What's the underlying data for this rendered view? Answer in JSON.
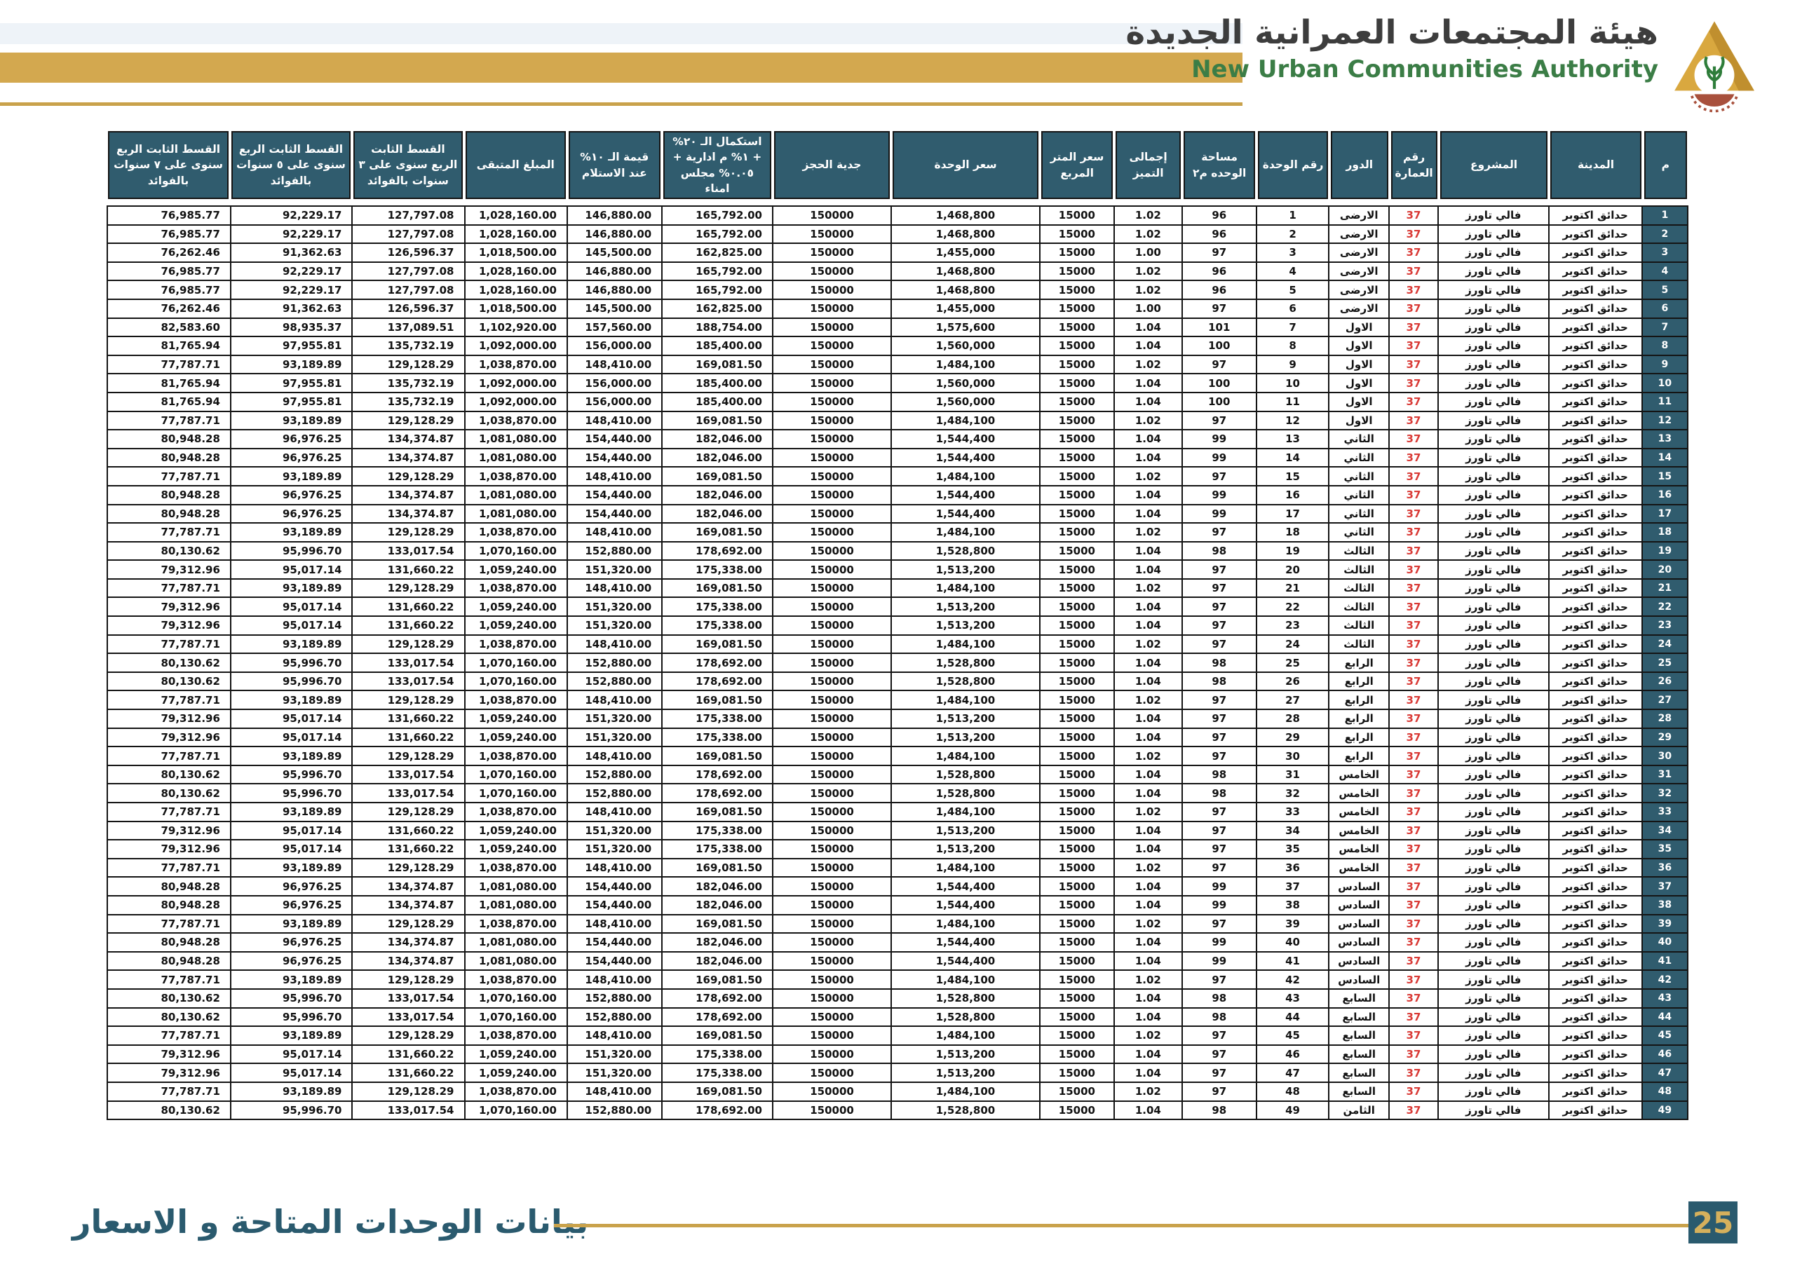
{
  "brand": {
    "title_ar": "هيئة المجتمعات العمرانية الجديدة",
    "title_en": "New Urban Communities Authority"
  },
  "footer": {
    "caption": "بيانات الوحدات المتاحة و الاسعار",
    "page_number": "25"
  },
  "colors": {
    "accent_gold": "#d3a84f",
    "header_teal": "#305c6e",
    "building_red": "#d93a36",
    "brand_green": "#3b7d46"
  },
  "table": {
    "columns": [
      {
        "key": "n",
        "label": "م"
      },
      {
        "key": "city",
        "label": "المدينة"
      },
      {
        "key": "project",
        "label": "المشروع"
      },
      {
        "key": "bldg",
        "label": "رقم العمارة"
      },
      {
        "key": "floor",
        "label": "الدور"
      },
      {
        "key": "unit",
        "label": "رقم الوحدة"
      },
      {
        "key": "area",
        "label": "مساحة الوحده م٢"
      },
      {
        "key": "premium",
        "label": "إجمالى التميز"
      },
      {
        "key": "sqm",
        "label": "سعر المتر المربع"
      },
      {
        "key": "price",
        "label": "سعر الوحدة"
      },
      {
        "key": "deposit",
        "label": "جدية الحجز"
      },
      {
        "key": "completion",
        "label": "استكمال الـ ٢٠% + ١% م ادارية + ٠.٠٥% مجلس امناء"
      },
      {
        "key": "receipt10",
        "label": "قيمة الـ ١٠% عند الاستلام"
      },
      {
        "key": "remaining",
        "label": "المبلغ المتبقى"
      },
      {
        "key": "inst3",
        "label": "القسط الثابت الربع سنوى على ٣ سنوات بالفوائد"
      },
      {
        "key": "inst5",
        "label": "القسط الثابت الربع سنوى على ٥ سنوات بالفوائد"
      },
      {
        "key": "inst7",
        "label": "القسط الثابت الربع سنوى على ٧ سنوات بالفوائد"
      }
    ],
    "common": {
      "city": "حدائق اكتوبر",
      "project": "فالي تاورز",
      "bldg": "37",
      "sqm": "15000",
      "deposit": "150000"
    },
    "patterns": {
      "A": {
        "area": "96",
        "premium": "1.02",
        "price": "1,468,800",
        "completion": "165,792.00",
        "receipt10": "146,880.00",
        "remaining": "1,028,160.00",
        "inst3": "127,797.08",
        "inst5": "92,229.17",
        "inst7": "76,985.77"
      },
      "B": {
        "area": "97",
        "premium": "1.00",
        "price": "1,455,000",
        "completion": "162,825.00",
        "receipt10": "145,500.00",
        "remaining": "1,018,500.00",
        "inst3": "126,596.37",
        "inst5": "91,362.63",
        "inst7": "76,262.46"
      },
      "C": {
        "area": "101",
        "premium": "1.04",
        "price": "1,575,600",
        "completion": "188,754.00",
        "receipt10": "157,560.00",
        "remaining": "1,102,920.00",
        "inst3": "137,089.51",
        "inst5": "98,935.37",
        "inst7": "82,583.60"
      },
      "D": {
        "area": "100",
        "premium": "1.04",
        "price": "1,560,000",
        "completion": "185,400.00",
        "receipt10": "156,000.00",
        "remaining": "1,092,000.00",
        "inst3": "135,732.19",
        "inst5": "97,955.81",
        "inst7": "81,765.94"
      },
      "E": {
        "area": "97",
        "premium": "1.02",
        "price": "1,484,100",
        "completion": "169,081.50",
        "receipt10": "148,410.00",
        "remaining": "1,038,870.00",
        "inst3": "129,128.29",
        "inst5": "93,189.89",
        "inst7": "77,787.71"
      },
      "F": {
        "area": "99",
        "premium": "1.04",
        "price": "1,544,400",
        "completion": "182,046.00",
        "receipt10": "154,440.00",
        "remaining": "1,081,080.00",
        "inst3": "134,374.87",
        "inst5": "96,976.25",
        "inst7": "80,948.28"
      },
      "G": {
        "area": "98",
        "premium": "1.04",
        "price": "1,528,800",
        "completion": "178,692.00",
        "receipt10": "152,880.00",
        "remaining": "1,070,160.00",
        "inst3": "133,017.54",
        "inst5": "95,996.70",
        "inst7": "80,130.62"
      },
      "H": {
        "area": "97",
        "premium": "1.04",
        "price": "1,513,200",
        "completion": "175,338.00",
        "receipt10": "151,320.00",
        "remaining": "1,059,240.00",
        "inst3": "131,660.22",
        "inst5": "95,017.14",
        "inst7": "79,312.96"
      }
    },
    "rows": [
      {
        "n": "1",
        "unit": "1",
        "floor": "الارضى",
        "pattern": "A"
      },
      {
        "n": "2",
        "unit": "2",
        "floor": "الارضى",
        "pattern": "A"
      },
      {
        "n": "3",
        "unit": "3",
        "floor": "الارضى",
        "pattern": "B"
      },
      {
        "n": "4",
        "unit": "4",
        "floor": "الارضى",
        "pattern": "A"
      },
      {
        "n": "5",
        "unit": "5",
        "floor": "الارضى",
        "pattern": "A"
      },
      {
        "n": "6",
        "unit": "6",
        "floor": "الارضى",
        "pattern": "B"
      },
      {
        "n": "7",
        "unit": "7",
        "floor": "الاول",
        "pattern": "C"
      },
      {
        "n": "8",
        "unit": "8",
        "floor": "الاول",
        "pattern": "D"
      },
      {
        "n": "9",
        "unit": "9",
        "floor": "الاول",
        "pattern": "E"
      },
      {
        "n": "10",
        "unit": "10",
        "floor": "الاول",
        "pattern": "D"
      },
      {
        "n": "11",
        "unit": "11",
        "floor": "الاول",
        "pattern": "D"
      },
      {
        "n": "12",
        "unit": "12",
        "floor": "الاول",
        "pattern": "E"
      },
      {
        "n": "13",
        "unit": "13",
        "floor": "الثاني",
        "pattern": "F"
      },
      {
        "n": "14",
        "unit": "14",
        "floor": "الثاني",
        "pattern": "F"
      },
      {
        "n": "15",
        "unit": "15",
        "floor": "الثاني",
        "pattern": "E"
      },
      {
        "n": "16",
        "unit": "16",
        "floor": "الثاني",
        "pattern": "F"
      },
      {
        "n": "17",
        "unit": "17",
        "floor": "الثاني",
        "pattern": "F"
      },
      {
        "n": "18",
        "unit": "18",
        "floor": "الثاني",
        "pattern": "E"
      },
      {
        "n": "19",
        "unit": "19",
        "floor": "الثالث",
        "pattern": "G"
      },
      {
        "n": "20",
        "unit": "20",
        "floor": "الثالث",
        "pattern": "H"
      },
      {
        "n": "21",
        "unit": "21",
        "floor": "الثالث",
        "pattern": "E"
      },
      {
        "n": "22",
        "unit": "22",
        "floor": "الثالث",
        "pattern": "H"
      },
      {
        "n": "23",
        "unit": "23",
        "floor": "الثالث",
        "pattern": "H"
      },
      {
        "n": "24",
        "unit": "24",
        "floor": "الثالث",
        "pattern": "E"
      },
      {
        "n": "25",
        "unit": "25",
        "floor": "الرابع",
        "pattern": "G"
      },
      {
        "n": "26",
        "unit": "26",
        "floor": "الرابع",
        "pattern": "G"
      },
      {
        "n": "27",
        "unit": "27",
        "floor": "الرابع",
        "pattern": "E"
      },
      {
        "n": "28",
        "unit": "28",
        "floor": "الرابع",
        "pattern": "H"
      },
      {
        "n": "29",
        "unit": "29",
        "floor": "الرابع",
        "pattern": "H"
      },
      {
        "n": "30",
        "unit": "30",
        "floor": "الرابع",
        "pattern": "E"
      },
      {
        "n": "31",
        "unit": "31",
        "floor": "الخامس",
        "pattern": "G"
      },
      {
        "n": "32",
        "unit": "32",
        "floor": "الخامس",
        "pattern": "G"
      },
      {
        "n": "33",
        "unit": "33",
        "floor": "الخامس",
        "pattern": "E"
      },
      {
        "n": "34",
        "unit": "34",
        "floor": "الخامس",
        "pattern": "H"
      },
      {
        "n": "35",
        "unit": "35",
        "floor": "الخامس",
        "pattern": "H"
      },
      {
        "n": "36",
        "unit": "36",
        "floor": "الخامس",
        "pattern": "E"
      },
      {
        "n": "37",
        "unit": "37",
        "floor": "السادس",
        "pattern": "F"
      },
      {
        "n": "38",
        "unit": "38",
        "floor": "السادس",
        "pattern": "F"
      },
      {
        "n": "39",
        "unit": "39",
        "floor": "السادس",
        "pattern": "E"
      },
      {
        "n": "40",
        "unit": "40",
        "floor": "السادس",
        "pattern": "F"
      },
      {
        "n": "41",
        "unit": "41",
        "floor": "السادس",
        "pattern": "F"
      },
      {
        "n": "42",
        "unit": "42",
        "floor": "السادس",
        "pattern": "E"
      },
      {
        "n": "43",
        "unit": "43",
        "floor": "السابع",
        "pattern": "G"
      },
      {
        "n": "44",
        "unit": "44",
        "floor": "السابع",
        "pattern": "G"
      },
      {
        "n": "45",
        "unit": "45",
        "floor": "السابع",
        "pattern": "E"
      },
      {
        "n": "46",
        "unit": "46",
        "floor": "السابع",
        "pattern": "H"
      },
      {
        "n": "47",
        "unit": "47",
        "floor": "السابع",
        "pattern": "H"
      },
      {
        "n": "48",
        "unit": "48",
        "floor": "السابع",
        "pattern": "E"
      },
      {
        "n": "49",
        "unit": "49",
        "floor": "الثامن",
        "pattern": "G"
      }
    ]
  }
}
